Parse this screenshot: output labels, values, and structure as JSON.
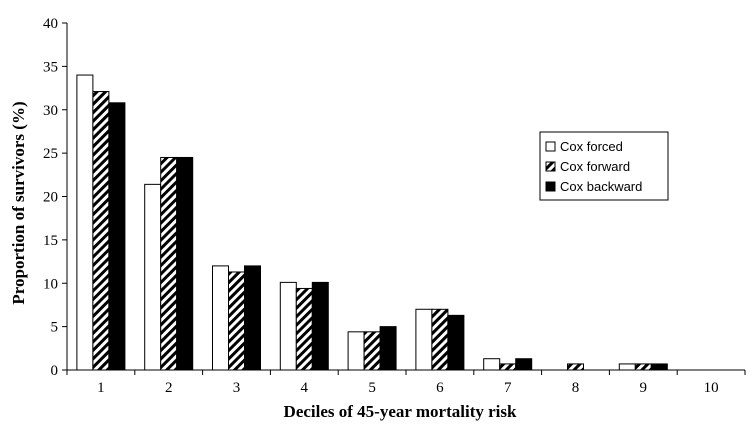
{
  "chart_data": {
    "type": "bar",
    "xlabel": "Deciles of 45-year mortality risk",
    "ylabel": "Proportion of survivors (%)",
    "categories": [
      "1",
      "2",
      "3",
      "4",
      "5",
      "6",
      "7",
      "8",
      "9",
      "10"
    ],
    "ylim": [
      0,
      40
    ],
    "yticks": [
      0,
      5,
      10,
      15,
      20,
      25,
      30,
      35,
      40
    ],
    "grid": false,
    "legend_position": "right",
    "series": [
      {
        "name": "Cox forced",
        "pattern": "open",
        "values": [
          34.0,
          21.4,
          12.0,
          10.1,
          4.4,
          7.0,
          1.3,
          0.0,
          0.7,
          0.0
        ]
      },
      {
        "name": "Cox forward",
        "pattern": "hatched",
        "values": [
          32.1,
          24.5,
          11.3,
          9.4,
          4.4,
          7.0,
          0.7,
          0.7,
          0.7,
          0.0
        ]
      },
      {
        "name": "Cox backward",
        "pattern": "solid",
        "values": [
          30.8,
          24.5,
          12.0,
          10.1,
          5.0,
          6.3,
          1.3,
          0.0,
          0.7,
          0.0
        ]
      }
    ]
  }
}
